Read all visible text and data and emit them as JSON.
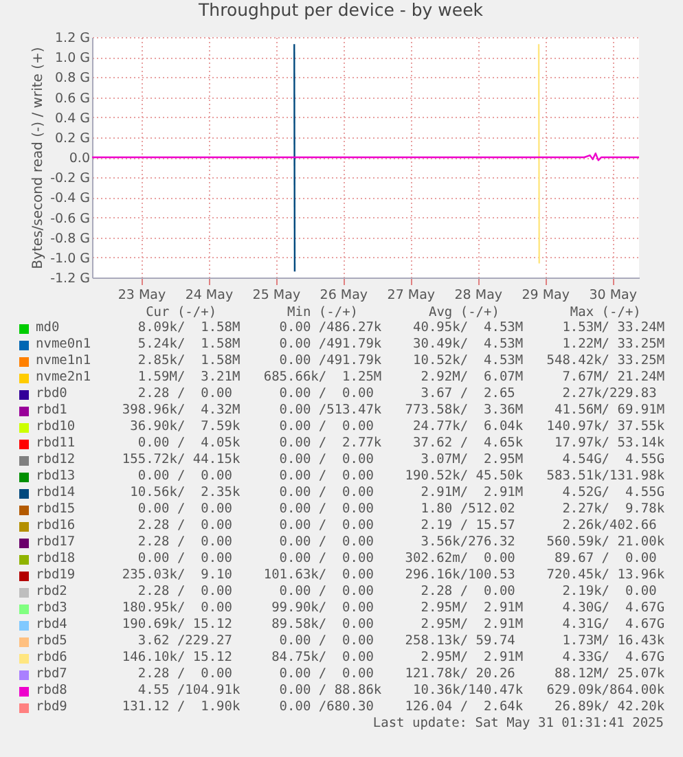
{
  "chart_data": {
    "type": "line",
    "title": "Throughput per device - by week",
    "ylabel": "Bytes/second read (-) / write (+)",
    "legend_title": "Cur (-/+)         Min (-/+)         Avg (-/+)         Max (-/+)",
    "legend": "bottom",
    "grid": true,
    "xlim": [
      "2025-05-22T18:30",
      "2025-05-30T21:30"
    ],
    "xticks": [
      {
        "value": "2025-05-23T12:00",
        "label": "23 May"
      },
      {
        "value": "2025-05-24T12:00",
        "label": "24 May"
      },
      {
        "value": "2025-05-25T12:00",
        "label": "25 May"
      },
      {
        "value": "2025-05-26T12:00",
        "label": "26 May"
      },
      {
        "value": "2025-05-27T12:00",
        "label": "27 May"
      },
      {
        "value": "2025-05-28T12:00",
        "label": "28 May"
      },
      {
        "value": "2025-05-29T12:00",
        "label": "29 May"
      },
      {
        "value": "2025-05-30T12:00",
        "label": "30 May"
      }
    ],
    "ylim": [
      -1.2,
      1.2
    ],
    "yticks": [
      {
        "value": -1.2,
        "label": "-1.2 G"
      },
      {
        "value": -1.0,
        "label": "-1.0 G"
      },
      {
        "value": -0.8,
        "label": "-0.8 G"
      },
      {
        "value": -0.6,
        "label": "-0.6 G"
      },
      {
        "value": -0.4,
        "label": "-0.4 G"
      },
      {
        "value": -0.2,
        "label": "-0.2 G"
      },
      {
        "value": 0,
        "label": "0.0"
      },
      {
        "value": 0.2,
        "label": "0.2 G"
      },
      {
        "value": 0.4,
        "label": "0.4 G"
      },
      {
        "value": 0.6,
        "label": "0.6 G"
      },
      {
        "value": 0.8,
        "label": "0.8 G"
      },
      {
        "value": 1.0,
        "label": "1.0 G"
      },
      {
        "value": 1.2,
        "label": "1.2 G"
      }
    ],
    "series": [
      {
        "name": "md0",
        "color": "#00cc00"
      },
      {
        "name": "nvme0n1",
        "color": "#0066b3"
      },
      {
        "name": "nvme1n1",
        "color": "#ff8000"
      },
      {
        "name": "nvme2n1",
        "color": "#ffcc00"
      },
      {
        "name": "rbd0",
        "color": "#330099"
      },
      {
        "name": "rbd1",
        "color": "#990099"
      },
      {
        "name": "rbd10",
        "color": "#ccff00"
      },
      {
        "name": "rbd11",
        "color": "#ff0000"
      },
      {
        "name": "rbd12",
        "color": "#808080"
      },
      {
        "name": "rbd13",
        "color": "#008f00"
      },
      {
        "name": "rbd14",
        "color": "#00487d",
        "x": [
          "2025-05-25T18:35",
          "2025-05-25T18:45"
        ],
        "values": [
          1.13,
          -1.14
        ]
      },
      {
        "name": "rbd15",
        "color": "#b35a00"
      },
      {
        "name": "rbd16",
        "color": "#b38f00"
      },
      {
        "name": "rbd17",
        "color": "#6b006b"
      },
      {
        "name": "rbd18",
        "color": "#8fb300"
      },
      {
        "name": "rbd19",
        "color": "#b30000"
      },
      {
        "name": "rbd2",
        "color": "#bebebe"
      },
      {
        "name": "rbd3",
        "color": "#80ff80"
      },
      {
        "name": "rbd4",
        "color": "#80c9ff"
      },
      {
        "name": "rbd5",
        "color": "#ffc080"
      },
      {
        "name": "rbd6",
        "color": "#ffe680",
        "x": [
          "2025-05-29T09:45",
          "2025-05-29T09:55"
        ],
        "values": [
          1.13,
          -1.06
        ]
      },
      {
        "name": "rbd7",
        "color": "#aa80ff"
      },
      {
        "name": "rbd8",
        "color": "#ee00cc",
        "x": [
          "2025-05-22T18:30",
          "2025-05-30T02:00",
          "2025-05-30T04:00",
          "2025-05-30T05:00",
          "2025-05-30T06:00",
          "2025-05-30T07:00",
          "2025-05-30T08:00",
          "2025-05-30T21:30"
        ],
        "values": [
          0,
          0,
          0.02,
          -0.02,
          0.04,
          -0.03,
          0,
          0
        ]
      },
      {
        "name": "rbd9",
        "color": "#ff8080"
      }
    ],
    "annotations": [
      "  8.09k/  1.58M     0.00 /486.27k    40.95k/  4.53M     1.53M/ 33.24M",
      "  5.24k/  1.58M     0.00 /491.79k    30.49k/  4.53M     1.22M/ 33.25M",
      "  2.85k/  1.58M     0.00 /491.79k    10.52k/  4.53M   548.42k/ 33.25M",
      "  1.59M/  3.21M   685.66k/  1.25M     2.92M/  6.07M     7.67M/ 21.24M",
      "  2.28 /  0.00      0.00 /  0.00      3.67 /  2.65      2.27k/229.83 ",
      "398.96k/  4.32M     0.00 /513.47k   773.58k/  3.36M    41.56M/ 69.91M",
      " 36.90k/  7.59k     0.00 /  0.00     24.77k/  6.04k   140.97k/ 37.55k",
      "  0.00 /  4.05k     0.00 /  2.77k    37.62 /  4.65k    17.97k/ 53.14k",
      "155.72k/ 44.15k     0.00 /  0.00      3.07M/  2.95M     4.54G/  4.55G",
      "  0.00 /  0.00      0.00 /  0.00    190.52k/ 45.50k   583.51k/131.98k",
      " 10.56k/  2.35k     0.00 /  0.00      2.91M/  2.91M     4.52G/  4.55G",
      "  0.00 /  0.00      0.00 /  0.00      1.80 /512.02      2.27k/  9.78k",
      "  2.28 /  0.00      0.00 /  0.00      2.19 / 15.57      2.26k/402.66 ",
      "  2.28 /  0.00      0.00 /  0.00      3.56k/276.32    560.59k/ 21.00k",
      "  0.00 /  0.00      0.00 /  0.00    302.62m/  0.00     89.67 /  0.00 ",
      "235.03k/  9.10    101.63k/  0.00    296.16k/100.53    720.45k/ 13.96k",
      "  2.28 /  0.00      0.00 /  0.00      2.28 /  0.00      2.19k/  0.00 ",
      "180.95k/  0.00     99.90k/  0.00      2.95M/  2.91M     4.30G/  4.67G",
      "190.69k/ 15.12     89.58k/  0.00      2.95M/  2.91M     4.31G/  4.67G",
      "  3.62 /229.27      0.00 /  0.00    258.13k/ 59.74      1.73M/ 16.43k",
      "146.10k/ 15.12     84.75k/  0.00      2.95M/  2.91M     4.33G/  4.67G",
      "  2.28 /  0.00      0.00 /  0.00    121.78k/ 20.26     88.12M/ 25.07k",
      "  4.55 /104.91k     0.00 / 88.86k    10.36k/140.47k   629.09k/864.00k",
      "131.12 /  1.90k     0.00 /680.30    126.04 /  2.64k    26.89k/ 42.20k",
      "Last update: Sat May 31 01:31:41 2025"
    ]
  }
}
